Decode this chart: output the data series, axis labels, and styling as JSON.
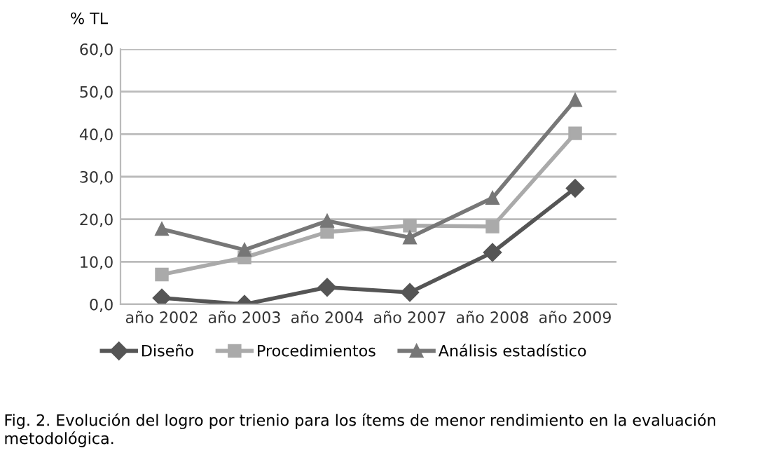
{
  "chart_data": {
    "type": "line",
    "ylabel": "% TL",
    "categories": [
      "año 2002",
      "año 2003",
      "año 2004",
      "año 2007",
      "año 2008",
      "año 2009"
    ],
    "series": [
      {
        "name": "Diseño",
        "color": "#555555",
        "marker": "diamond",
        "values": [
          1.5,
          0,
          4,
          2.8,
          12.2,
          27.3
        ]
      },
      {
        "name": "Procedimientos",
        "color": "#aaaaaa",
        "marker": "square",
        "values": [
          7,
          11,
          17,
          18.5,
          18.3,
          40.2
        ]
      },
      {
        "name": "Análisis estadístico",
        "color": "#777777",
        "marker": "triangle",
        "values": [
          17.7,
          12.8,
          19.6,
          15.7,
          25,
          48
        ]
      }
    ],
    "ylim": [
      0,
      60
    ],
    "yticks": [
      {
        "value": 0,
        "label": "0,0"
      },
      {
        "value": 10,
        "label": "10,0"
      },
      {
        "value": 20,
        "label": "20,0"
      },
      {
        "value": 30,
        "label": "30,0"
      },
      {
        "value": 40,
        "label": "40,0"
      },
      {
        "value": 50,
        "label": "50,0"
      },
      {
        "value": 60,
        "label": "60,0"
      }
    ],
    "grid": "y",
    "legend": "bottom",
    "line_style": "solid",
    "annotations": [
      "Fig. 2. Evolución del logro por trienio para los ítems de menor rendimiento en la evaluación metodológica."
    ]
  }
}
